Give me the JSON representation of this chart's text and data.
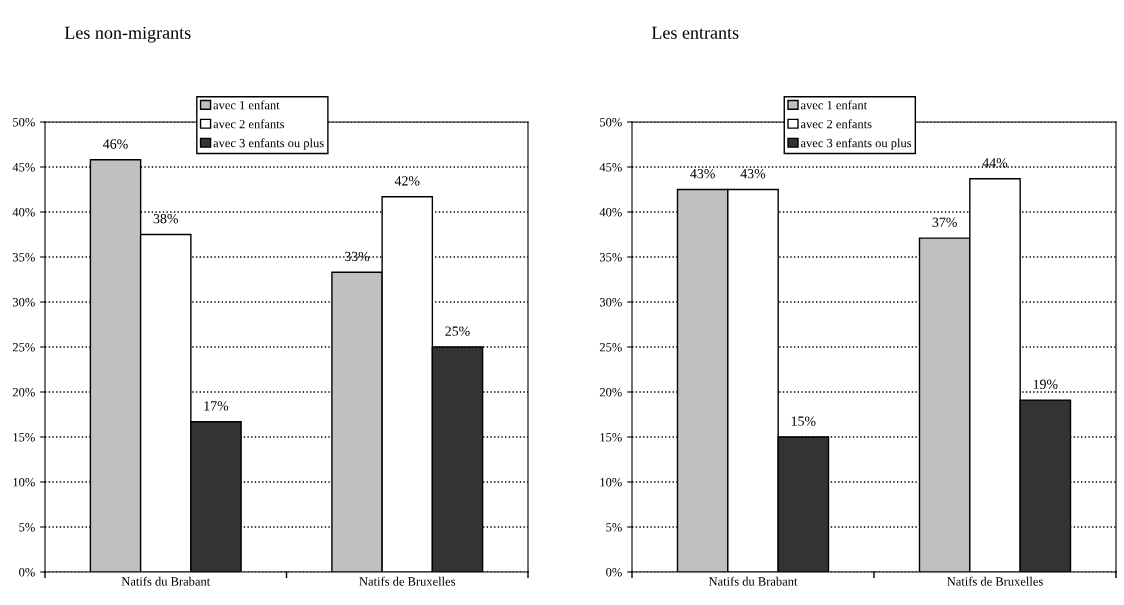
{
  "chart_data": [
    {
      "type": "bar",
      "title": "Les non-migrants",
      "categories": [
        "Natifs du Brabant",
        "Natifs de Bruxelles"
      ],
      "series": [
        {
          "name": "avec 1 enfant",
          "color": "#c0c0c0",
          "values": [
            45.8,
            33.3
          ],
          "value_labels": [
            "46%",
            "33%"
          ]
        },
        {
          "name": "avec 2 enfants",
          "color": "#ffffff",
          "values": [
            37.5,
            41.7
          ],
          "value_labels": [
            "38%",
            "42%"
          ]
        },
        {
          "name": "avec 3 enfants ou plus",
          "color": "#333333",
          "values": [
            16.7,
            25.0
          ],
          "value_labels": [
            "17%",
            "25%"
          ]
        }
      ],
      "ylim": [
        0,
        50
      ],
      "yticks": [
        {
          "value": 0,
          "label": "0%"
        },
        {
          "value": 5,
          "label": "5%"
        },
        {
          "value": 10,
          "label": "10%"
        },
        {
          "value": 15,
          "label": "15%"
        },
        {
          "value": 20,
          "label": "20%"
        },
        {
          "value": 25,
          "label": "25%"
        },
        {
          "value": 30,
          "label": "30%"
        },
        {
          "value": 35,
          "label": "35%"
        },
        {
          "value": 40,
          "label": "40%"
        },
        {
          "value": 45,
          "label": "45%"
        },
        {
          "value": 50,
          "label": "50%"
        }
      ],
      "grid": "y",
      "legend": "top"
    },
    {
      "type": "bar",
      "title": "Les entrants",
      "categories": [
        "Natifs du Brabant",
        "Natifs de Bruxelles"
      ],
      "series": [
        {
          "name": "avec 1 enfant",
          "color": "#c0c0c0",
          "values": [
            42.5,
            37.1
          ],
          "value_labels": [
            "43%",
            "37%"
          ]
        },
        {
          "name": "avec 2 enfants",
          "color": "#ffffff",
          "values": [
            42.5,
            43.7
          ],
          "value_labels": [
            "43%",
            "44%"
          ]
        },
        {
          "name": "avec 3 enfants ou plus",
          "color": "#333333",
          "values": [
            15.0,
            19.1
          ],
          "value_labels": [
            "15%",
            "19%"
          ]
        }
      ],
      "ylim": [
        0,
        50
      ],
      "yticks": [
        {
          "value": 0,
          "label": "0%"
        },
        {
          "value": 5,
          "label": "5%"
        },
        {
          "value": 10,
          "label": "10%"
        },
        {
          "value": 15,
          "label": "15%"
        },
        {
          "value": 20,
          "label": "20%"
        },
        {
          "value": 25,
          "label": "25%"
        },
        {
          "value": 30,
          "label": "30%"
        },
        {
          "value": 35,
          "label": "35%"
        },
        {
          "value": 40,
          "label": "40%"
        },
        {
          "value": 45,
          "label": "45%"
        },
        {
          "value": 50,
          "label": "50%"
        }
      ],
      "grid": "y",
      "legend": "top"
    }
  ]
}
